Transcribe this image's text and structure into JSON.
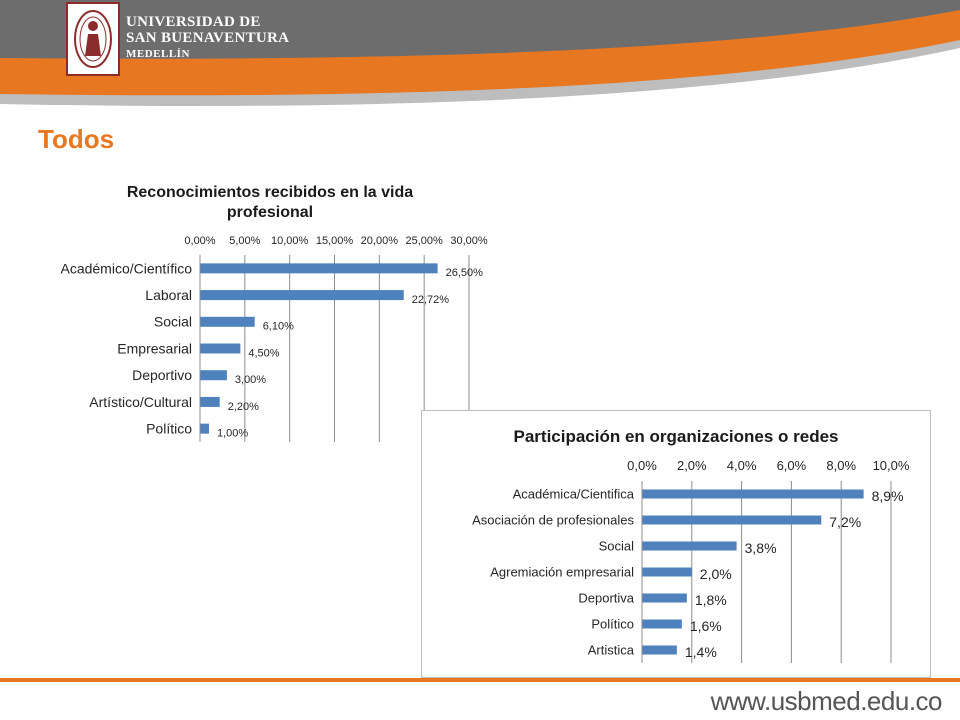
{
  "header": {
    "logo_icon": "university-seal-icon",
    "university_line1": "UNIVERSIDAD DE",
    "university_line2": "SAN BUENAVENTURA",
    "university_line3": "MEDELLÍN",
    "colors": {
      "orange": "#e87722",
      "grey": "#6d6d6d",
      "seal": "#8b2d2d"
    }
  },
  "page": {
    "title": "Todos"
  },
  "footer": {
    "url": "www.usbmed.edu.co"
  },
  "chart_data": [
    {
      "type": "bar",
      "orientation": "horizontal",
      "title": "Reconocimientos recibidos en la vida profesional",
      "title_lines": [
        "Reconocimientos recibidos en la vida",
        "profesional"
      ],
      "categories": [
        "Académico/Científico",
        "Laboral",
        "Social",
        "Empresarial",
        "Deportivo",
        "Artístico/Cultural",
        "Político"
      ],
      "values": [
        26.5,
        22.72,
        6.1,
        4.5,
        3.0,
        2.2,
        1.0
      ],
      "value_labels": [
        "26,50%",
        "22,72%",
        "6,10%",
        "4,50%",
        "3,00%",
        "2,20%",
        "1,00%"
      ],
      "ticks": [
        0,
        5,
        10,
        15,
        20,
        25,
        30
      ],
      "tick_labels": [
        "0,00%",
        "5,00%",
        "10,00%",
        "15,00%",
        "20,00%",
        "25,00%",
        "30,00%"
      ],
      "xlim": [
        0,
        30
      ],
      "axis_position": "top",
      "grid": true,
      "bar_color": "#4f81bd"
    },
    {
      "type": "bar",
      "orientation": "horizontal",
      "title": "Participación en organizaciones o redes",
      "title_lines": [
        "Participación en organizaciones o redes"
      ],
      "categories": [
        "Académica/Cientifica",
        "Asociación de profesionales",
        "Social",
        "Agremiación empresarial",
        "Deportiva",
        "Político",
        "Artistica"
      ],
      "values": [
        8.9,
        7.2,
        3.8,
        2.0,
        1.8,
        1.6,
        1.4
      ],
      "value_labels": [
        "8,9%",
        "7,2%",
        "3,8%",
        "2,0%",
        "1,8%",
        "1,6%",
        "1,4%"
      ],
      "ticks": [
        0,
        2,
        4,
        6,
        8,
        10
      ],
      "tick_labels": [
        "0,0%",
        "2,0%",
        "4,0%",
        "6,0%",
        "8,0%",
        "10,0%"
      ],
      "xlim": [
        0,
        10
      ],
      "axis_position": "top",
      "grid": true,
      "bar_color": "#4f81bd"
    }
  ]
}
